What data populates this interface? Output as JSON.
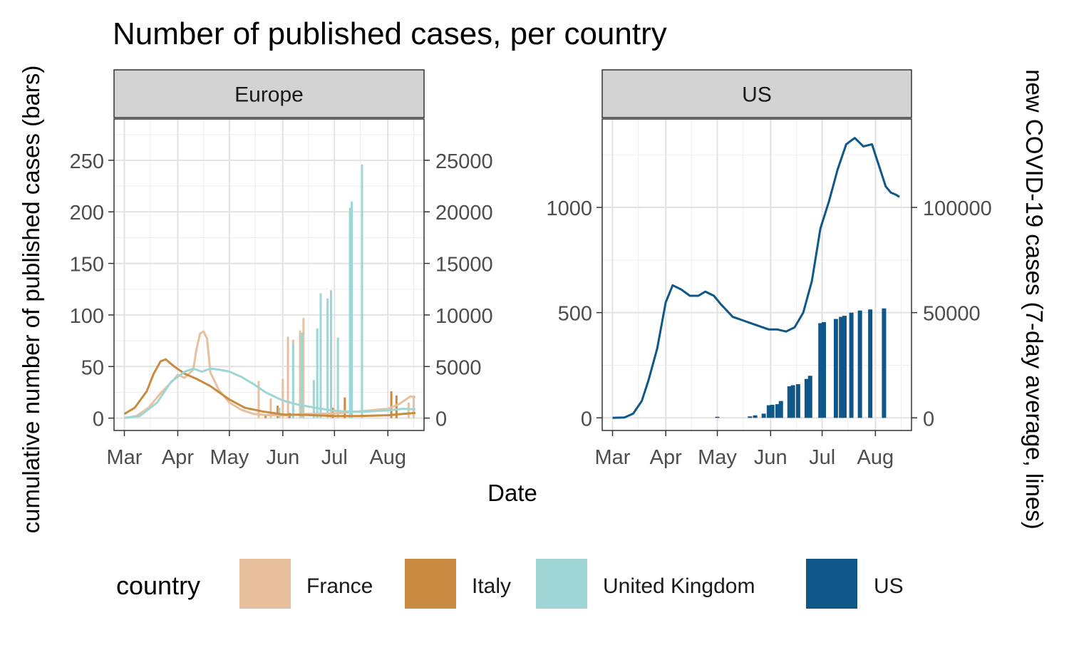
{
  "title": "Number of published cases, per country",
  "ylabel_left": "cumulative number of published cases (bars)",
  "ylabel_right": "new COVID-19 cases (7-day average, lines)",
  "xlabel": "Date",
  "legend": {
    "title": "country",
    "items": [
      {
        "label": "France",
        "color": "#E8C09E"
      },
      {
        "label": "Italy",
        "color": "#C98B3F"
      },
      {
        "label": "United Kingdom",
        "color": "#9ED6D6"
      },
      {
        "label": "US",
        "color": "#0F5788"
      }
    ]
  },
  "chart_data": [
    {
      "type": "bar+line",
      "facet": "Europe",
      "x_ticks": [
        "Mar",
        "Apr",
        "May",
        "Jun",
        "Jul",
        "Aug"
      ],
      "x_tick_dates": [
        "2020-03-01",
        "2020-04-01",
        "2020-05-01",
        "2020-06-01",
        "2020-07-01",
        "2020-08-01"
      ],
      "xlim": [
        "2020-02-24",
        "2020-08-22"
      ],
      "y_left_ticks": [
        0,
        50,
        100,
        150,
        200,
        250
      ],
      "y_left_lim": [
        -12,
        290
      ],
      "y_right_ticks": [
        0,
        5000,
        10000,
        15000,
        20000,
        25000
      ],
      "y_right_lim": [
        -1200,
        29000
      ],
      "bars": [
        {
          "country": "France",
          "points": [
            [
              "2020-05-18",
              36
            ],
            [
              "2020-05-25",
              19
            ],
            [
              "2020-06-01",
              38
            ],
            [
              "2020-06-04",
              79
            ],
            [
              "2020-06-07",
              76
            ],
            [
              "2020-06-11",
              85
            ],
            [
              "2020-06-13",
              97
            ],
            [
              "2020-08-13",
              15
            ],
            [
              "2020-08-16",
              22
            ]
          ]
        },
        {
          "country": "Italy",
          "points": [
            [
              "2020-05-22",
              3
            ],
            [
              "2020-05-29",
              12
            ],
            [
              "2020-06-05",
              5
            ],
            [
              "2020-06-30",
              10
            ],
            [
              "2020-07-07",
              20
            ],
            [
              "2020-08-03",
              26
            ],
            [
              "2020-08-06",
              22
            ]
          ]
        },
        {
          "country": "United Kingdom",
          "points": [
            [
              "2020-05-30",
              10
            ],
            [
              "2020-06-07",
              72
            ],
            [
              "2020-06-12",
              83
            ],
            [
              "2020-06-19",
              37
            ],
            [
              "2020-06-21",
              87
            ],
            [
              "2020-06-23",
              121
            ],
            [
              "2020-06-27",
              116
            ],
            [
              "2020-06-29",
              124
            ],
            [
              "2020-07-03",
              78
            ],
            [
              "2020-07-10",
              204
            ],
            [
              "2020-07-11",
              210
            ],
            [
              "2020-07-17",
              246
            ]
          ]
        }
      ],
      "lines": [
        {
          "country": "France",
          "points": [
            [
              "2020-03-01",
              0
            ],
            [
              "2020-03-08",
              200
            ],
            [
              "2020-03-15",
              1000
            ],
            [
              "2020-03-22",
              2400
            ],
            [
              "2020-03-29",
              3600
            ],
            [
              "2020-04-01",
              4200
            ],
            [
              "2020-04-05",
              3900
            ],
            [
              "2020-04-10",
              4700
            ],
            [
              "2020-04-12",
              6800
            ],
            [
              "2020-04-14",
              8200
            ],
            [
              "2020-04-16",
              8400
            ],
            [
              "2020-04-18",
              7700
            ],
            [
              "2020-04-20",
              4400
            ],
            [
              "2020-04-25",
              2700
            ],
            [
              "2020-05-01",
              1500
            ],
            [
              "2020-05-08",
              800
            ],
            [
              "2020-05-15",
              400
            ],
            [
              "2020-05-22",
              300
            ],
            [
              "2020-06-01",
              250
            ],
            [
              "2020-06-15",
              400
            ],
            [
              "2020-07-01",
              450
            ],
            [
              "2020-07-15",
              650
            ],
            [
              "2020-08-01",
              900
            ],
            [
              "2020-08-08",
              1400
            ],
            [
              "2020-08-14",
              2100
            ],
            [
              "2020-08-17",
              2000
            ]
          ]
        },
        {
          "country": "Italy",
          "points": [
            [
              "2020-03-01",
              400
            ],
            [
              "2020-03-07",
              1000
            ],
            [
              "2020-03-14",
              2600
            ],
            [
              "2020-03-18",
              4300
            ],
            [
              "2020-03-22",
              5500
            ],
            [
              "2020-03-25",
              5700
            ],
            [
              "2020-03-30",
              5000
            ],
            [
              "2020-04-05",
              4300
            ],
            [
              "2020-04-12",
              3800
            ],
            [
              "2020-04-20",
              3100
            ],
            [
              "2020-05-01",
              1800
            ],
            [
              "2020-05-10",
              1000
            ],
            [
              "2020-05-20",
              650
            ],
            [
              "2020-06-01",
              350
            ],
            [
              "2020-06-15",
              300
            ],
            [
              "2020-07-01",
              200
            ],
            [
              "2020-07-15",
              200
            ],
            [
              "2020-08-01",
              280
            ],
            [
              "2020-08-10",
              400
            ],
            [
              "2020-08-17",
              500
            ]
          ]
        },
        {
          "country": "United Kingdom",
          "points": [
            [
              "2020-03-01",
              20
            ],
            [
              "2020-03-10",
              200
            ],
            [
              "2020-03-20",
              1500
            ],
            [
              "2020-03-28",
              3500
            ],
            [
              "2020-04-05",
              4500
            ],
            [
              "2020-04-10",
              4800
            ],
            [
              "2020-04-15",
              4500
            ],
            [
              "2020-04-20",
              4800
            ],
            [
              "2020-04-25",
              4700
            ],
            [
              "2020-05-01",
              4500
            ],
            [
              "2020-05-08",
              4000
            ],
            [
              "2020-05-15",
              3300
            ],
            [
              "2020-05-22",
              2500
            ],
            [
              "2020-06-01",
              1700
            ],
            [
              "2020-06-10",
              1300
            ],
            [
              "2020-06-20",
              1000
            ],
            [
              "2020-07-01",
              700
            ],
            [
              "2020-07-15",
              600
            ],
            [
              "2020-08-01",
              750
            ],
            [
              "2020-08-10",
              900
            ],
            [
              "2020-08-17",
              850
            ]
          ]
        }
      ]
    },
    {
      "type": "bar+line",
      "facet": "US",
      "x_ticks": [
        "Mar",
        "Apr",
        "May",
        "Jun",
        "Jul",
        "Aug"
      ],
      "x_tick_dates": [
        "2020-03-01",
        "2020-04-01",
        "2020-05-01",
        "2020-06-01",
        "2020-07-01",
        "2020-08-01"
      ],
      "xlim": [
        "2020-02-24",
        "2020-08-22"
      ],
      "y_left_ticks": [
        0,
        500,
        1000
      ],
      "y_left_lim": [
        -60,
        1420
      ],
      "y_right_ticks": [
        0,
        50000,
        100000
      ],
      "y_right_lim": [
        -6000,
        142000
      ],
      "bars": [
        {
          "country": "US",
          "points": [
            [
              "2020-05-01",
              5
            ],
            [
              "2020-05-20",
              7
            ],
            [
              "2020-05-23",
              12
            ],
            [
              "2020-05-28",
              20
            ],
            [
              "2020-05-31",
              60
            ],
            [
              "2020-06-02",
              62
            ],
            [
              "2020-06-05",
              65
            ],
            [
              "2020-06-07",
              80
            ],
            [
              "2020-06-12",
              150
            ],
            [
              "2020-06-14",
              155
            ],
            [
              "2020-06-17",
              160
            ],
            [
              "2020-06-22",
              185
            ],
            [
              "2020-06-24",
              200
            ],
            [
              "2020-06-30",
              450
            ],
            [
              "2020-07-02",
              455
            ],
            [
              "2020-07-09",
              470
            ],
            [
              "2020-07-12",
              480
            ],
            [
              "2020-07-14",
              485
            ],
            [
              "2020-07-18",
              500
            ],
            [
              "2020-07-23",
              510
            ],
            [
              "2020-07-29",
              515
            ],
            [
              "2020-08-06",
              520
            ]
          ]
        }
      ],
      "lines": [
        {
          "country": "US",
          "points": [
            [
              "2020-03-01",
              0
            ],
            [
              "2020-03-08",
              200
            ],
            [
              "2020-03-13",
              2000
            ],
            [
              "2020-03-18",
              8000
            ],
            [
              "2020-03-22",
              18000
            ],
            [
              "2020-03-27",
              33000
            ],
            [
              "2020-04-01",
              55000
            ],
            [
              "2020-04-05",
              63000
            ],
            [
              "2020-04-10",
              61000
            ],
            [
              "2020-04-15",
              58000
            ],
            [
              "2020-04-20",
              58000
            ],
            [
              "2020-04-24",
              60000
            ],
            [
              "2020-04-29",
              58000
            ],
            [
              "2020-05-03",
              54000
            ],
            [
              "2020-05-10",
              48000
            ],
            [
              "2020-05-17",
              46000
            ],
            [
              "2020-05-24",
              44000
            ],
            [
              "2020-05-31",
              42000
            ],
            [
              "2020-06-05",
              42000
            ],
            [
              "2020-06-10",
              41000
            ],
            [
              "2020-06-15",
              43000
            ],
            [
              "2020-06-20",
              50000
            ],
            [
              "2020-06-25",
              65000
            ],
            [
              "2020-06-30",
              90000
            ],
            [
              "2020-07-05",
              103000
            ],
            [
              "2020-07-10",
              118000
            ],
            [
              "2020-07-15",
              130000
            ],
            [
              "2020-07-20",
              133000
            ],
            [
              "2020-07-25",
              129000
            ],
            [
              "2020-07-30",
              130000
            ],
            [
              "2020-08-03",
              120000
            ],
            [
              "2020-08-07",
              110000
            ],
            [
              "2020-08-10",
              107000
            ],
            [
              "2020-08-13",
              106000
            ],
            [
              "2020-08-15",
              105000
            ]
          ]
        }
      ]
    }
  ]
}
